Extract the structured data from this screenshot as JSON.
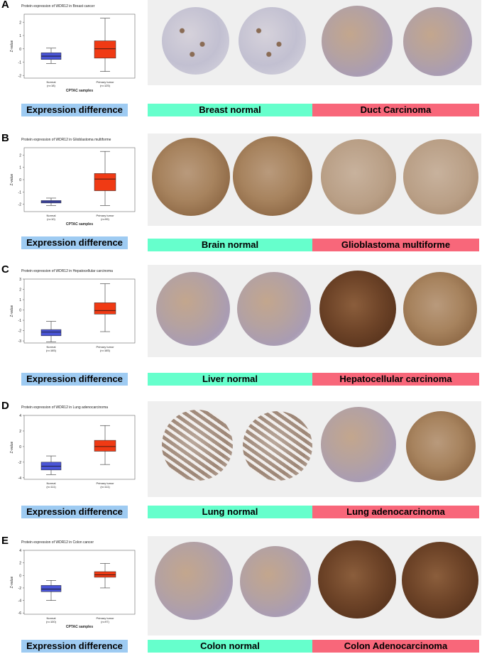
{
  "colors": {
    "normal_box": "#4a55d6",
    "tumor_box": "#f03a14",
    "expr_bar": "#9ecbf2",
    "normal_bar": "#66ffcc",
    "tumor_bar": "#f8677a"
  },
  "panels": [
    {
      "letter": "A",
      "expression_label": "Expression difference",
      "normal_label": "Breast normal",
      "tumor_label": "Duct Carcinoma"
    },
    {
      "letter": "B",
      "expression_label": "Expression difference",
      "normal_label": "Brain normal",
      "tumor_label": "Glioblastoma multiforme"
    },
    {
      "letter": "C",
      "expression_label": "Expression difference",
      "normal_label": "Liver normal",
      "tumor_label": "Hepatocellular carcinoma"
    },
    {
      "letter": "D",
      "expression_label": "Expression difference",
      "normal_label": "Lung normal",
      "tumor_label": "Lung adenocarcinoma"
    },
    {
      "letter": "E",
      "expression_label": "Expression difference",
      "normal_label": "Colon normal",
      "tumor_label": "Colon Adenocarcinoma"
    }
  ],
  "chart_data": [
    {
      "type": "box",
      "title": "Protein expression of WDR12 in Breast cancer",
      "xlabel": "CPTAC samples",
      "ylabel": "Z-value",
      "yticks": [
        -2,
        -1,
        0,
        1,
        2
      ],
      "ylim": [
        -2.2,
        2.6
      ],
      "series": [
        {
          "name": "Normal",
          "n": "(n=18)",
          "min": -1.1,
          "q1": -0.8,
          "median": -0.55,
          "q3": -0.3,
          "max": 0.05
        },
        {
          "name": "Primary tumor",
          "n": "(n=125)",
          "min": -1.7,
          "q1": -0.7,
          "median": 0.0,
          "q3": 0.6,
          "max": 2.3
        }
      ]
    },
    {
      "type": "box",
      "title": "Protein expression of WDR12 in Glioblastoma multiforme",
      "xlabel": "CPTAC samples",
      "ylabel": "Z-value",
      "yticks": [
        -2,
        -1,
        0,
        1,
        2
      ],
      "ylim": [
        -2.6,
        2.6
      ],
      "series": [
        {
          "name": "Normal",
          "n": "(n=10)",
          "min": -2.1,
          "q1": -1.9,
          "median": -1.8,
          "q3": -1.7,
          "max": -1.5
        },
        {
          "name": "Primary tumor",
          "n": "(n=99)",
          "min": -2.1,
          "q1": -0.9,
          "median": 0.05,
          "q3": 0.5,
          "max": 2.3
        }
      ]
    },
    {
      "type": "box",
      "title": "Protein expression of WDR12 in Hepatocellular carcinoma",
      "xlabel": "",
      "ylabel": "Z-value",
      "yticks": [
        -3,
        -2,
        -1,
        0,
        1,
        2,
        3
      ],
      "ylim": [
        -3.2,
        3
      ],
      "series": [
        {
          "name": "Normal",
          "n": "(n=165)",
          "min": -3.1,
          "q1": -2.5,
          "median": -2.15,
          "q3": -1.9,
          "max": -1.1
        },
        {
          "name": "Primary tumor",
          "n": "(n=165)",
          "min": -2.1,
          "q1": -0.4,
          "median": -0.05,
          "q3": 0.7,
          "max": 2.55
        }
      ]
    },
    {
      "type": "box",
      "title": "Protein expression of WDR12 in Lung adenocarcinoma",
      "xlabel": "",
      "ylabel": "Z-value",
      "yticks": [
        -4,
        -2,
        0,
        2,
        4
      ],
      "ylim": [
        -4.2,
        4
      ],
      "series": [
        {
          "name": "Normal",
          "n": "(n=111)",
          "min": -3.6,
          "q1": -3.0,
          "median": -2.5,
          "q3": -2.0,
          "max": -1.2
        },
        {
          "name": "Primary tumor",
          "n": "(n=111)",
          "min": -2.3,
          "q1": -0.6,
          "median": 0.0,
          "q3": 0.8,
          "max": 2.7
        }
      ]
    },
    {
      "type": "box",
      "title": "Protein expression of WDR12 in Colon cancer",
      "xlabel": "CPTAC samples",
      "ylabel": "Z-value",
      "yticks": [
        -6,
        -4,
        -2,
        0,
        2,
        4
      ],
      "ylim": [
        -6.2,
        4
      ],
      "series": [
        {
          "name": "Normal",
          "n": "(n=100)",
          "min": -4.0,
          "q1": -2.6,
          "median": -2.2,
          "q3": -1.6,
          "max": -0.8
        },
        {
          "name": "Primary tumor",
          "n": "(n=97)",
          "min": -2.0,
          "q1": -0.3,
          "median": 0.1,
          "q3": 0.6,
          "max": 1.9
        }
      ]
    }
  ]
}
